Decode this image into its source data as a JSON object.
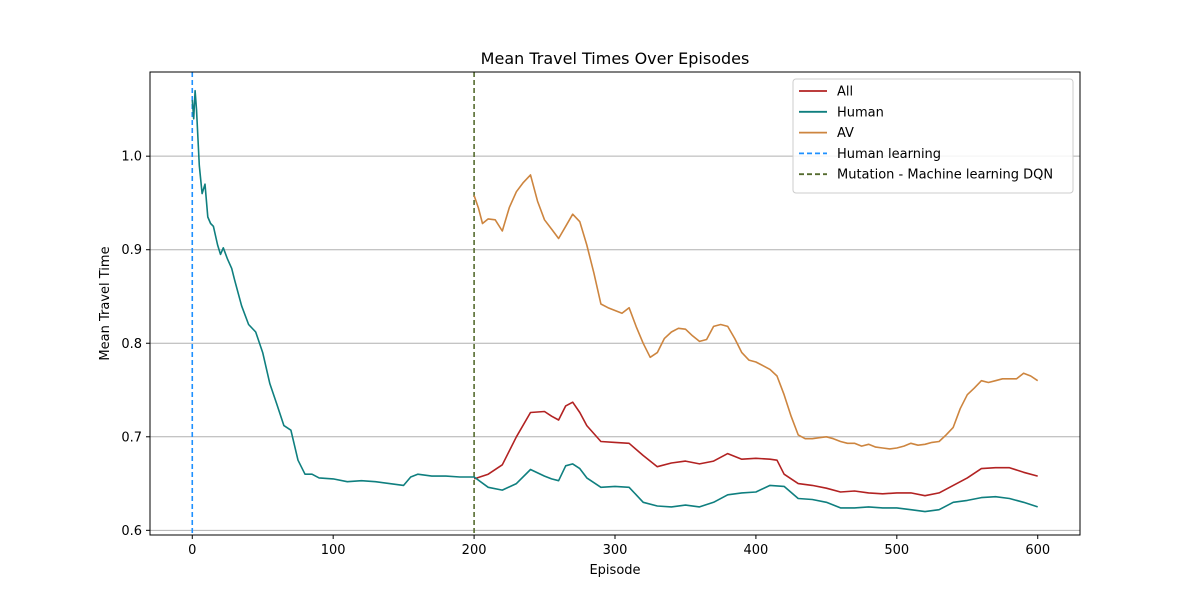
{
  "chart_data": {
    "type": "line",
    "title": "Mean Travel Times Over Episodes",
    "xlabel": "Episode",
    "ylabel": "Mean Travel Time",
    "xlim": [
      -30,
      630
    ],
    "ylim": [
      0.595,
      1.09
    ],
    "xticks": [
      0,
      100,
      200,
      300,
      400,
      500,
      600
    ],
    "yticks": [
      0.6,
      0.7,
      0.8,
      0.9,
      1.0
    ],
    "ytick_labels": [
      "0.6",
      "0.7",
      "0.8",
      "0.9",
      "1.0"
    ],
    "grid": "y-only",
    "legend_position": "top-right",
    "series": [
      {
        "name": "All",
        "color": "#b22222",
        "x": [
          200,
          210,
          220,
          230,
          240,
          250,
          255,
          260,
          265,
          270,
          275,
          280,
          290,
          300,
          310,
          320,
          330,
          340,
          350,
          360,
          370,
          380,
          390,
          400,
          410,
          415,
          420,
          430,
          440,
          450,
          460,
          470,
          480,
          490,
          500,
          510,
          520,
          530,
          540,
          550,
          560,
          570,
          580,
          590,
          600
        ],
        "y": [
          0.655,
          0.66,
          0.67,
          0.7,
          0.726,
          0.727,
          0.722,
          0.718,
          0.733,
          0.737,
          0.726,
          0.712,
          0.695,
          0.694,
          0.693,
          0.68,
          0.668,
          0.672,
          0.674,
          0.671,
          0.674,
          0.682,
          0.676,
          0.677,
          0.676,
          0.675,
          0.66,
          0.65,
          0.648,
          0.645,
          0.641,
          0.642,
          0.64,
          0.639,
          0.64,
          0.64,
          0.637,
          0.64,
          0.648,
          0.656,
          0.666,
          0.667,
          0.667,
          0.662,
          0.658
        ]
      },
      {
        "name": "Human",
        "color": "#0f7f7f",
        "x": [
          0,
          1,
          2,
          3,
          5,
          7,
          9,
          11,
          13,
          15,
          18,
          20,
          22,
          25,
          28,
          30,
          35,
          40,
          45,
          50,
          55,
          60,
          65,
          70,
          75,
          80,
          85,
          90,
          100,
          110,
          120,
          130,
          140,
          150,
          155,
          160,
          170,
          180,
          190,
          200,
          210,
          220,
          230,
          240,
          250,
          255,
          260,
          265,
          270,
          275,
          280,
          290,
          300,
          310,
          320,
          330,
          340,
          350,
          360,
          370,
          380,
          390,
          400,
          410,
          420,
          430,
          440,
          450,
          460,
          470,
          480,
          490,
          500,
          510,
          520,
          530,
          540,
          550,
          560,
          570,
          580,
          590,
          600
        ],
        "y": [
          1.06,
          1.04,
          1.07,
          1.05,
          0.99,
          0.96,
          0.97,
          0.935,
          0.928,
          0.925,
          0.905,
          0.895,
          0.902,
          0.89,
          0.88,
          0.868,
          0.84,
          0.82,
          0.812,
          0.79,
          0.757,
          0.735,
          0.712,
          0.707,
          0.675,
          0.66,
          0.66,
          0.656,
          0.655,
          0.652,
          0.653,
          0.652,
          0.65,
          0.648,
          0.657,
          0.66,
          0.658,
          0.658,
          0.657,
          0.657,
          0.646,
          0.643,
          0.65,
          0.665,
          0.658,
          0.655,
          0.653,
          0.669,
          0.671,
          0.666,
          0.656,
          0.646,
          0.647,
          0.646,
          0.63,
          0.626,
          0.625,
          0.627,
          0.625,
          0.63,
          0.638,
          0.64,
          0.641,
          0.648,
          0.647,
          0.634,
          0.633,
          0.63,
          0.624,
          0.624,
          0.625,
          0.624,
          0.624,
          0.622,
          0.62,
          0.622,
          0.63,
          0.632,
          0.635,
          0.636,
          0.634,
          0.63,
          0.625
        ]
      },
      {
        "name": "AV",
        "color": "#cd853f",
        "x": [
          200,
          203,
          206,
          210,
          215,
          220,
          225,
          230,
          235,
          240,
          245,
          250,
          255,
          260,
          265,
          270,
          275,
          280,
          285,
          290,
          295,
          300,
          305,
          310,
          315,
          320,
          325,
          330,
          335,
          340,
          345,
          350,
          355,
          360,
          365,
          370,
          375,
          380,
          385,
          390,
          395,
          400,
          405,
          410,
          415,
          420,
          425,
          430,
          435,
          440,
          445,
          450,
          455,
          460,
          465,
          470,
          475,
          480,
          485,
          490,
          495,
          500,
          505,
          510,
          515,
          520,
          525,
          530,
          535,
          540,
          545,
          550,
          555,
          560,
          565,
          570,
          575,
          580,
          585,
          590,
          595,
          600
        ],
        "y": [
          0.958,
          0.945,
          0.928,
          0.933,
          0.932,
          0.92,
          0.945,
          0.962,
          0.972,
          0.98,
          0.952,
          0.932,
          0.922,
          0.912,
          0.925,
          0.938,
          0.93,
          0.905,
          0.875,
          0.842,
          0.838,
          0.835,
          0.832,
          0.838,
          0.818,
          0.8,
          0.785,
          0.79,
          0.805,
          0.812,
          0.816,
          0.815,
          0.808,
          0.802,
          0.804,
          0.818,
          0.82,
          0.818,
          0.805,
          0.79,
          0.782,
          0.78,
          0.776,
          0.772,
          0.765,
          0.745,
          0.722,
          0.702,
          0.698,
          0.698,
          0.699,
          0.7,
          0.698,
          0.695,
          0.693,
          0.693,
          0.69,
          0.692,
          0.689,
          0.688,
          0.687,
          0.688,
          0.69,
          0.693,
          0.691,
          0.692,
          0.694,
          0.695,
          0.702,
          0.71,
          0.73,
          0.745,
          0.752,
          0.76,
          0.758,
          0.76,
          0.762,
          0.762,
          0.762,
          0.768,
          0.765,
          0.76
        ]
      },
      {
        "name": "Human learning",
        "color": "#1e90ff",
        "style": "dashed",
        "vline_x": 0
      },
      {
        "name": "Mutation - Machine learning DQN",
        "color": "#556b2f",
        "style": "dashed",
        "vline_x": 200
      }
    ]
  }
}
